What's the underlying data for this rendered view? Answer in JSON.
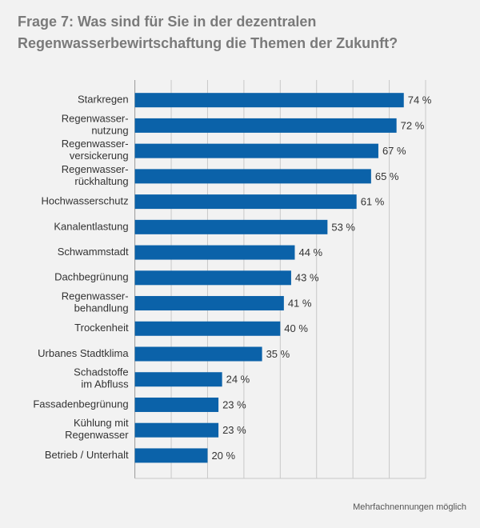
{
  "chart_data": {
    "type": "barh",
    "title": [
      "Frage 7: Was sind für Sie in der dezentralen",
      "Regenwasserbewirtschaftung die Themen der Zukunft?"
    ],
    "categories": [
      "Starkregen",
      "Regenwasser-\nnutzung",
      "Regenwasser-\nversickerung",
      "Regenwasser-\nrückhaltung",
      "Hochwasserschutz",
      "Kanalentlastung",
      "Schwammstadt",
      "Dachbegrünung",
      "Regenwasser-\nbehandlung",
      "Trockenheit",
      "Urbanes Stadtklima",
      "Schadstoffe\nim Abfluss",
      "Fassadenbegrünung",
      "Kühlung mit\nRegenwasser",
      "Betrieb / Unterhalt"
    ],
    "values": [
      74,
      72,
      67,
      65,
      61,
      53,
      44,
      43,
      41,
      40,
      35,
      24,
      23,
      23,
      20
    ],
    "value_labels": [
      "74 %",
      "72 %",
      "67 %",
      "65 %",
      "61 %",
      "53 %",
      "44 %",
      "43 %",
      "41 %",
      "40 %",
      "35 %",
      "24 %",
      "23 %",
      "23 %",
      "20 %"
    ],
    "color": "#0b62a9",
    "xlim": [
      0,
      80
    ],
    "xticks": [
      0,
      10,
      20,
      30,
      40,
      50,
      60,
      70,
      80
    ],
    "grid": true,
    "note": "Mehrfachnennungen möglich"
  }
}
